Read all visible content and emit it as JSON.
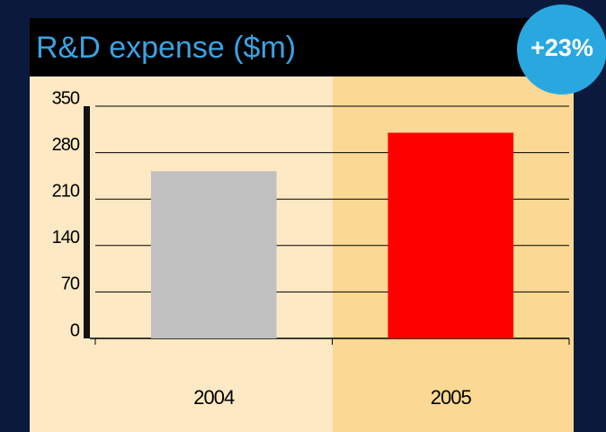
{
  "chart_data": {
    "type": "bar",
    "title": "R&D expense ($m)",
    "annotation": "+23%",
    "categories": [
      "2004",
      "2005"
    ],
    "values": [
      252,
      310
    ],
    "colors": [
      "#c0c0c0",
      "#ff0000"
    ],
    "ylim": [
      0,
      350
    ],
    "yticks": [
      0,
      70,
      140,
      210,
      280,
      350
    ],
    "grid": true
  }
}
